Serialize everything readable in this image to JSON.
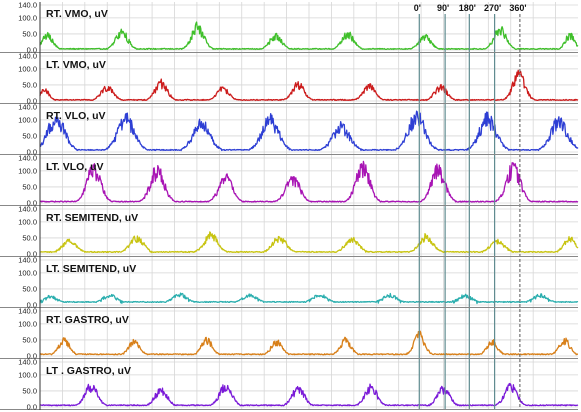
{
  "phase_labels": [
    "0'",
    "90'",
    "180'",
    "270'",
    "360'"
  ],
  "chart_data": {
    "type": "line",
    "y_tick_labels": [
      "0.0",
      "50.0",
      "100.0",
      "140.0"
    ],
    "ylim": [
      0,
      140
    ],
    "grid": true,
    "panels": [
      {
        "label": "RT. VMO, uV",
        "color": "#3fbf2a",
        "ylim": [
          0,
          140
        ],
        "y_tick_labels": [
          "0.0",
          "50.0",
          "100.0",
          "140.0"
        ],
        "baseline": 2,
        "bursts": [
          {
            "center": 0.014,
            "width": 0.035,
            "peak": 55
          },
          {
            "center": 0.152,
            "width": 0.04,
            "peak": 65
          },
          {
            "center": 0.293,
            "width": 0.04,
            "peak": 85
          },
          {
            "center": 0.438,
            "width": 0.04,
            "peak": 50
          },
          {
            "center": 0.572,
            "width": 0.04,
            "peak": 60
          },
          {
            "center": 0.715,
            "width": 0.04,
            "peak": 50
          },
          {
            "center": 0.855,
            "width": 0.04,
            "peak": 75
          },
          {
            "center": 0.985,
            "width": 0.03,
            "peak": 55
          }
        ]
      },
      {
        "label": "LT. VMO, uV",
        "color": "#cc1c1c",
        "ylim": [
          0,
          140
        ],
        "y_tick_labels": [
          "0.0",
          "50.0",
          "100.0",
          "140.0"
        ],
        "baseline": 2,
        "bursts": [
          {
            "center": 0.008,
            "width": 0.03,
            "peak": 40
          },
          {
            "center": 0.125,
            "width": 0.04,
            "peak": 50
          },
          {
            "center": 0.225,
            "width": 0.04,
            "peak": 65
          },
          {
            "center": 0.34,
            "width": 0.04,
            "peak": 45
          },
          {
            "center": 0.48,
            "width": 0.04,
            "peak": 60
          },
          {
            "center": 0.612,
            "width": 0.04,
            "peak": 55
          },
          {
            "center": 0.745,
            "width": 0.04,
            "peak": 50
          },
          {
            "center": 0.89,
            "width": 0.04,
            "peak": 95
          }
        ]
      },
      {
        "label": "RT. VLO, uV",
        "color": "#2e3fd4",
        "ylim": [
          0,
          140
        ],
        "y_tick_labels": [
          "0.0",
          "50.0",
          "100.0",
          "140.0"
        ],
        "baseline": 5,
        "bursts": [
          {
            "center": 0.03,
            "width": 0.055,
            "peak": 125
          },
          {
            "center": 0.16,
            "width": 0.055,
            "peak": 120
          },
          {
            "center": 0.3,
            "width": 0.055,
            "peak": 100
          },
          {
            "center": 0.428,
            "width": 0.055,
            "peak": 115
          },
          {
            "center": 0.56,
            "width": 0.055,
            "peak": 90
          },
          {
            "center": 0.7,
            "width": 0.055,
            "peak": 130
          },
          {
            "center": 0.832,
            "width": 0.055,
            "peak": 120
          },
          {
            "center": 0.965,
            "width": 0.055,
            "peak": 110
          }
        ]
      },
      {
        "label": "LT. VLO, uV",
        "color": "#a814b4",
        "ylim": [
          0,
          140
        ],
        "y_tick_labels": [
          "0.0",
          "50.0",
          "100.0",
          "140.0"
        ],
        "baseline": 3,
        "bursts": [
          {
            "center": 0.1,
            "width": 0.045,
            "peak": 125
          },
          {
            "center": 0.218,
            "width": 0.045,
            "peak": 120
          },
          {
            "center": 0.345,
            "width": 0.045,
            "peak": 90
          },
          {
            "center": 0.47,
            "width": 0.045,
            "peak": 90
          },
          {
            "center": 0.6,
            "width": 0.045,
            "peak": 130
          },
          {
            "center": 0.74,
            "width": 0.045,
            "peak": 120
          },
          {
            "center": 0.88,
            "width": 0.045,
            "peak": 130
          }
        ]
      },
      {
        "label": "RT. SEMITEND, uV",
        "color": "#c8c412",
        "ylim": [
          0,
          140
        ],
        "y_tick_labels": [
          "0.0",
          "50.0",
          "100.0",
          "140.0"
        ],
        "baseline": 5,
        "bursts": [
          {
            "center": 0.055,
            "width": 0.045,
            "peak": 45
          },
          {
            "center": 0.18,
            "width": 0.045,
            "peak": 55
          },
          {
            "center": 0.318,
            "width": 0.045,
            "peak": 65
          },
          {
            "center": 0.445,
            "width": 0.045,
            "peak": 55
          },
          {
            "center": 0.58,
            "width": 0.045,
            "peak": 50
          },
          {
            "center": 0.718,
            "width": 0.045,
            "peak": 60
          },
          {
            "center": 0.85,
            "width": 0.045,
            "peak": 45
          },
          {
            "center": 0.985,
            "width": 0.04,
            "peak": 50
          }
        ]
      },
      {
        "label": "LT. SEMITEND, uV",
        "color": "#2aaeae",
        "ylim": [
          0,
          140
        ],
        "y_tick_labels": [
          "0.0",
          "50.0",
          "100.0",
          "140.0"
        ],
        "baseline": 8,
        "bursts": [
          {
            "center": 0.02,
            "width": 0.04,
            "peak": 25
          },
          {
            "center": 0.13,
            "width": 0.045,
            "peak": 28
          },
          {
            "center": 0.26,
            "width": 0.045,
            "peak": 30
          },
          {
            "center": 0.39,
            "width": 0.045,
            "peak": 28
          },
          {
            "center": 0.52,
            "width": 0.045,
            "peak": 30
          },
          {
            "center": 0.65,
            "width": 0.045,
            "peak": 28
          },
          {
            "center": 0.79,
            "width": 0.045,
            "peak": 26
          },
          {
            "center": 0.93,
            "width": 0.045,
            "peak": 28
          }
        ]
      },
      {
        "label": "RT. GASTRO, uV",
        "color": "#d8801a",
        "ylim": [
          0,
          140
        ],
        "y_tick_labels": [
          "0.0",
          "50.0",
          "100.0",
          "140.0"
        ],
        "baseline": 4,
        "bursts": [
          {
            "center": 0.045,
            "width": 0.035,
            "peak": 55
          },
          {
            "center": 0.175,
            "width": 0.035,
            "peak": 50
          },
          {
            "center": 0.31,
            "width": 0.035,
            "peak": 55
          },
          {
            "center": 0.44,
            "width": 0.035,
            "peak": 50
          },
          {
            "center": 0.568,
            "width": 0.035,
            "peak": 55
          },
          {
            "center": 0.705,
            "width": 0.035,
            "peak": 75
          },
          {
            "center": 0.84,
            "width": 0.035,
            "peak": 50
          },
          {
            "center": 0.975,
            "width": 0.035,
            "peak": 55
          }
        ]
      },
      {
        "label": "LT . GASTRO, uV",
        "color": "#7a1ad8",
        "ylim": [
          0,
          140
        ],
        "y_tick_labels": [
          "0.0",
          "50.0",
          "100.0",
          "140.0"
        ],
        "baseline": 4,
        "bursts": [
          {
            "center": 0.095,
            "width": 0.04,
            "peak": 75
          },
          {
            "center": 0.225,
            "width": 0.04,
            "peak": 60
          },
          {
            "center": 0.345,
            "width": 0.04,
            "peak": 75
          },
          {
            "center": 0.48,
            "width": 0.04,
            "peak": 65
          },
          {
            "center": 0.615,
            "width": 0.04,
            "peak": 70
          },
          {
            "center": 0.75,
            "width": 0.04,
            "peak": 65
          },
          {
            "center": 0.875,
            "width": 0.04,
            "peak": 75
          }
        ]
      }
    ],
    "phase_markers": [
      {
        "label_index": 0,
        "x": 0.705,
        "style": "solid"
      },
      {
        "label_index": 1,
        "x": 0.753,
        "style": "solid"
      },
      {
        "label_index": 2,
        "x": 0.798,
        "style": "solid"
      },
      {
        "label_index": 3,
        "x": 0.845,
        "style": "solid"
      },
      {
        "label_index": 4,
        "x": 0.892,
        "style": "dashed"
      }
    ]
  }
}
